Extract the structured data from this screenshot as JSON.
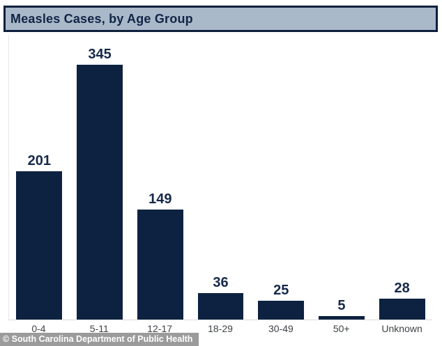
{
  "header": {
    "title": "Measles Cases, by Age Group"
  },
  "footer": {
    "attribution": "© South Carolina Department of Public Health"
  },
  "colors": {
    "bar": "#0d2240",
    "title_text": "#102545",
    "header_bg": "#aab9ca",
    "header_border": "#0c1f3c",
    "axis_line": "#dadada",
    "value_label": "#16284a",
    "category_label": "#3f4346",
    "attribution_bg": "#8d8d8d",
    "attribution_text": "#ffffff"
  },
  "chart_data": {
    "type": "bar",
    "title": "Measles Cases, by Age Group",
    "categories": [
      "0-4",
      "5-11",
      "12-17",
      "18-29",
      "30-49",
      "50+",
      "Unknown"
    ],
    "values": [
      201,
      345,
      149,
      36,
      25,
      5,
      28
    ],
    "xlabel": "",
    "ylabel": "",
    "ylim": [
      0,
      380
    ],
    "grid": false,
    "legend_position": "none",
    "bar_color": "#0d2240",
    "data_labels": true
  }
}
